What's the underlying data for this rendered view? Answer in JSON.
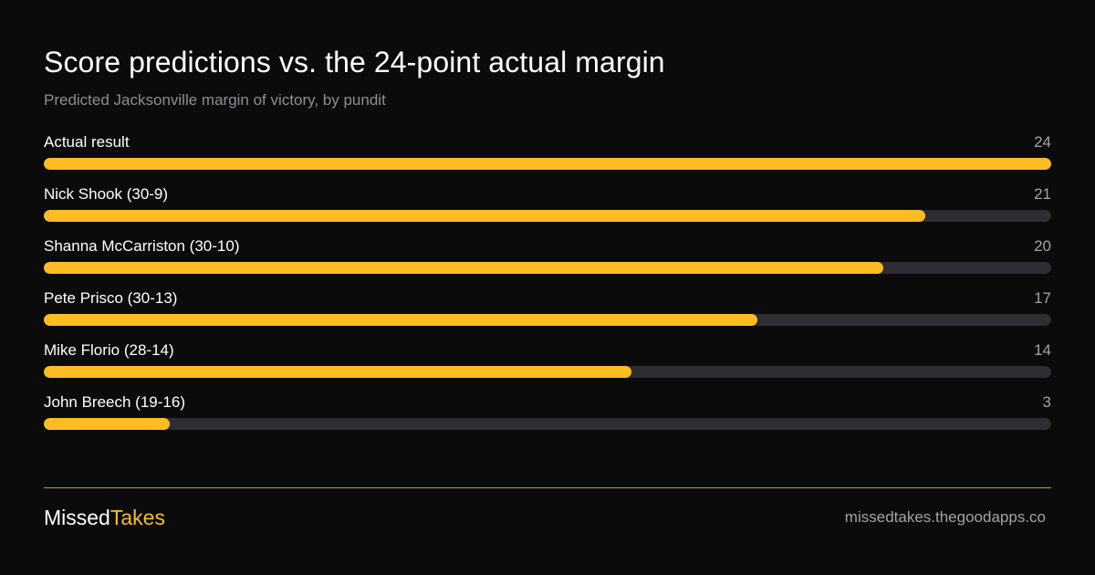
{
  "colors": {
    "background": "#0b0b0c",
    "accent": "#fbbd23",
    "track": "#2e2d33",
    "muted_text": "#8d8d94",
    "divider": "#e9b54a"
  },
  "header": {
    "title": "Score predictions vs. the 24-point actual margin",
    "subtitle": "Predicted Jacksonville margin of victory, by pundit"
  },
  "chart_data": {
    "type": "bar",
    "orientation": "horizontal",
    "title": "Score predictions vs. the 24-point actual margin",
    "subtitle": "Predicted Jacksonville margin of victory, by pundit",
    "xlim": [
      0,
      24
    ],
    "grid": false,
    "categories": [
      "Actual result",
      "Nick Shook (30-9)",
      "Shanna McCarriston (30-10)",
      "Pete Prisco (30-13)",
      "Mike Florio (28-14)",
      "John Breech (19-16)"
    ],
    "values": [
      24,
      21,
      20,
      17,
      14,
      3
    ]
  },
  "footer": {
    "brand_part1": "Missed",
    "brand_part2": "Takes",
    "url": "missedtakes.thegoodapps.co"
  }
}
